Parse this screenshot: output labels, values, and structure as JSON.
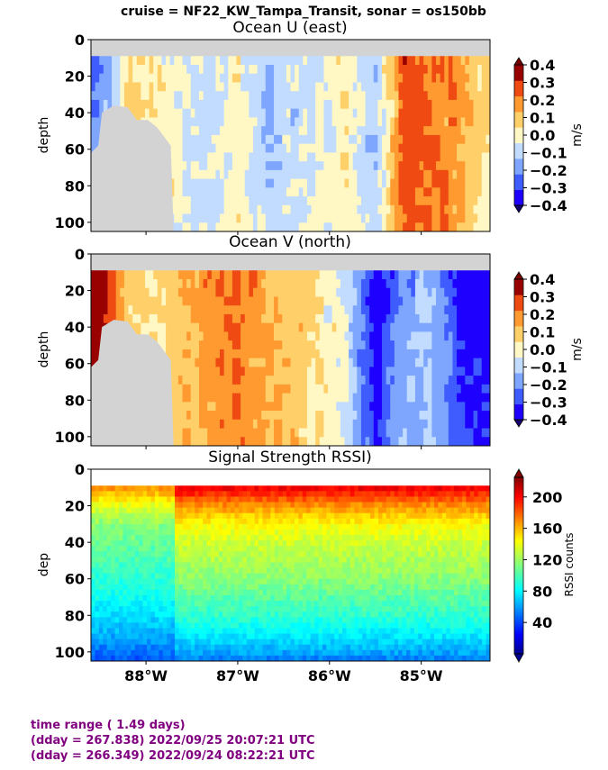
{
  "figure": {
    "suptitle": "cruise = NF22_KW_Tampa_Transit,  sonar = os150bb"
  },
  "colors": {
    "missing": "#d3d3d3",
    "footer_text": "#800080"
  },
  "chart_data": [
    {
      "type": "heatmap",
      "title": "Ocean U (east)",
      "ylabel": "depth",
      "x_axis": "longitude",
      "xlim": [
        -88.6,
        -84.25
      ],
      "ylim": [
        105,
        0
      ],
      "yticks": [
        "0",
        "20",
        "40",
        "60",
        "80",
        "100"
      ],
      "colorbar": {
        "label": "m/s",
        "range": [
          -0.4,
          0.4
        ],
        "ticks": [
          "0.4",
          "0.3",
          "0.2",
          "0.1",
          "0.0",
          "−0.1",
          "−0.2",
          "−0.3",
          "−0.4"
        ],
        "colors": [
          "#1e00ff",
          "#3f5cff",
          "#7ea6ff",
          "#c2dcff",
          "#fff7c4",
          "#ffd06a",
          "#ff9a30",
          "#ee4a12",
          "#990000"
        ]
      },
      "profile_along_track": {
        "lon": [
          -88.5,
          -88.2,
          -87.9,
          -87.6,
          -87.3,
          -87.0,
          -86.7,
          -86.4,
          -86.1,
          -85.8,
          -85.5,
          -85.2,
          -84.9,
          -84.6,
          -84.3
        ],
        "u_ms": [
          -0.25,
          0.05,
          0.02,
          -0.05,
          -0.08,
          0.0,
          -0.12,
          -0.1,
          -0.05,
          0.02,
          -0.15,
          0.3,
          0.25,
          0.18,
          0.05
        ]
      }
    },
    {
      "type": "heatmap",
      "title": "Ocean V (north)",
      "ylabel": "depth",
      "x_axis": "longitude",
      "xlim": [
        -88.6,
        -84.25
      ],
      "ylim": [
        105,
        0
      ],
      "yticks": [
        "0",
        "20",
        "40",
        "60",
        "80",
        "100"
      ],
      "colorbar": {
        "label": "m/s",
        "range": [
          -0.4,
          0.4
        ],
        "ticks": [
          "0.4",
          "0.3",
          "0.2",
          "0.1",
          "0.0",
          "−0.1",
          "−0.2",
          "−0.3",
          "−0.4"
        ],
        "colors": [
          "#1e00ff",
          "#3f5cff",
          "#7ea6ff",
          "#c2dcff",
          "#fff7c4",
          "#ffd06a",
          "#ff9a30",
          "#ee4a12",
          "#990000"
        ]
      },
      "profile_along_track": {
        "lon": [
          -88.5,
          -88.2,
          -87.9,
          -87.6,
          -87.3,
          -87.0,
          -86.7,
          -86.4,
          -86.1,
          -85.8,
          -85.5,
          -85.2,
          -84.9,
          -84.6,
          -84.3
        ],
        "v_ms": [
          0.4,
          0.1,
          0.05,
          0.15,
          0.2,
          0.25,
          0.15,
          0.1,
          0.05,
          -0.1,
          -0.4,
          -0.2,
          -0.15,
          -0.35,
          -0.4
        ]
      }
    },
    {
      "type": "heatmap",
      "title": "Signal Strength RSSI)",
      "ylabel": "dep",
      "x_axis": "longitude",
      "xlim": [
        -88.6,
        -84.25
      ],
      "ylim": [
        105,
        0
      ],
      "yticks": [
        "0",
        "20",
        "40",
        "60",
        "80",
        "100"
      ],
      "xticks": [
        {
          "lon": -88.0,
          "label": "88°W"
        },
        {
          "lon": -87.0,
          "label": "87°W"
        },
        {
          "lon": -86.0,
          "label": "86°W"
        },
        {
          "lon": -85.0,
          "label": "85°W"
        }
      ],
      "colorbar": {
        "label": "RSSI counts",
        "range": [
          0,
          225
        ],
        "ticks": [
          "200",
          "160",
          "120",
          "80",
          "40"
        ],
        "tick_values": [
          200,
          160,
          120,
          80,
          40
        ],
        "colormap": "jet"
      },
      "rssi_profile": {
        "depth": [
          10,
          20,
          30,
          40,
          50,
          60,
          70,
          80,
          90,
          100,
          105
        ],
        "counts": [
          200,
          165,
          140,
          130,
          122,
          115,
          105,
          95,
          82,
          65,
          55
        ]
      }
    }
  ],
  "footer": {
    "line1": "time range ( 1.49 days)",
    "line2": "(dday = 267.838) 2022/09/25 20:07:21 UTC",
    "line3": "(dday = 266.349) 2022/09/24 08:22:21 UTC"
  }
}
